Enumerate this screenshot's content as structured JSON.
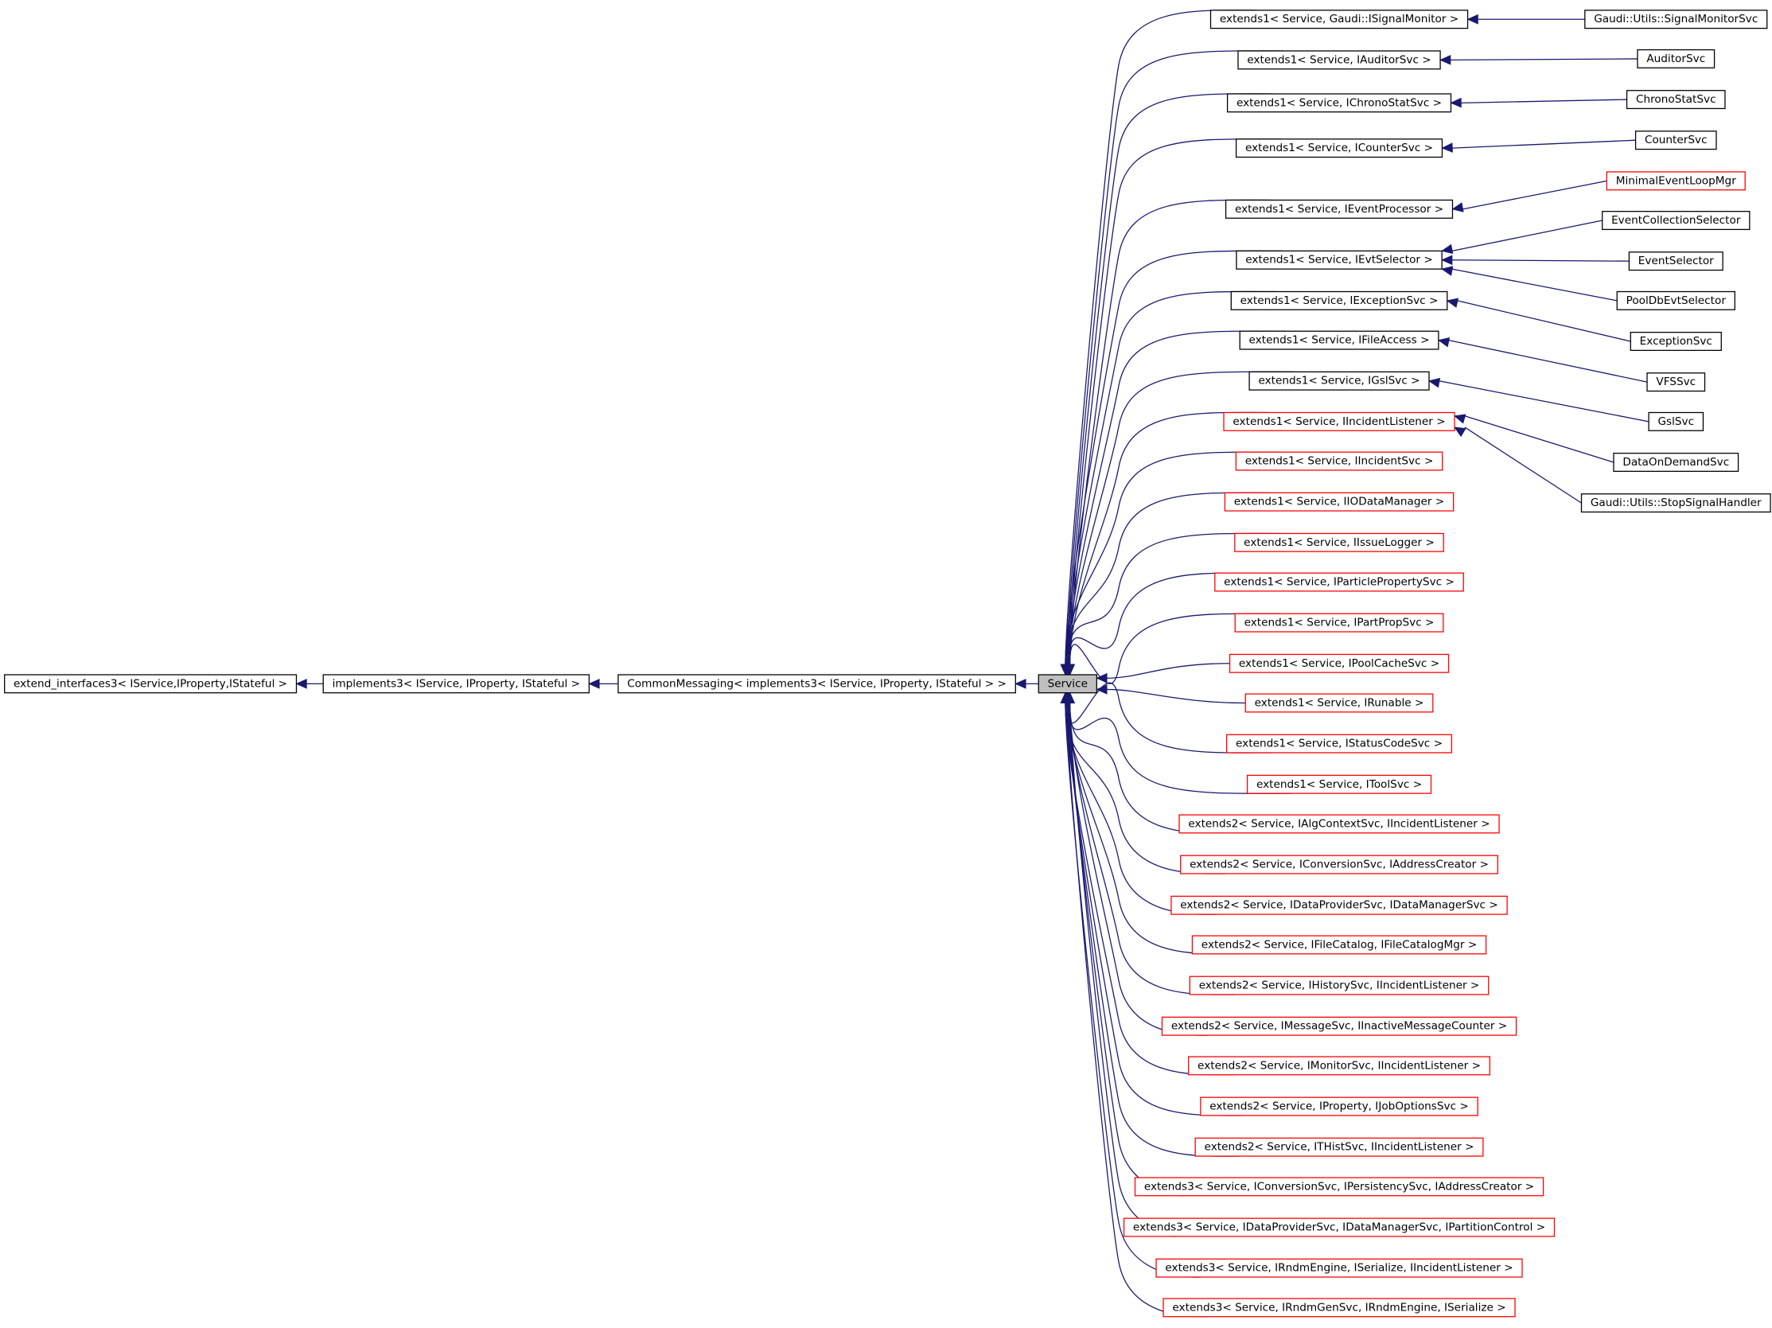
{
  "colors": {
    "edge": "#191970",
    "documented_border": "#000000",
    "undocumented_border": "#ff0000",
    "focus_fill": "#bfbfbf"
  },
  "chain": [
    {
      "label": "extend_interfaces3< IService,IProperty,IStateful >",
      "border": "black"
    },
    {
      "label": "implements3< IService, IProperty, IStateful >",
      "border": "black"
    },
    {
      "label": "CommonMessaging< implements3< IService, IProperty, IStateful > >",
      "border": "black"
    },
    {
      "label": "Service",
      "border": "black",
      "focus": true
    }
  ],
  "middle": [
    {
      "label": "extends1< Service, Gaudi::ISignalMonitor >",
      "border": "black"
    },
    {
      "label": "extends1< Service, IAuditorSvc >",
      "border": "black"
    },
    {
      "label": "extends1< Service, IChronoStatSvc >",
      "border": "black"
    },
    {
      "label": "extends1< Service, ICounterSvc >",
      "border": "black"
    },
    {
      "label": "extends1< Service, IEventProcessor >",
      "border": "black"
    },
    {
      "label": "extends1< Service, IEvtSelector >",
      "border": "black"
    },
    {
      "label": "extends1< Service, IExceptionSvc >",
      "border": "black"
    },
    {
      "label": "extends1< Service, IFileAccess >",
      "border": "black"
    },
    {
      "label": "extends1< Service, IGslSvc >",
      "border": "black"
    },
    {
      "label": "extends1< Service, IIncidentListener >",
      "border": "red"
    },
    {
      "label": "extends1< Service, IIncidentSvc >",
      "border": "red"
    },
    {
      "label": "extends1< Service, IIODataManager >",
      "border": "red"
    },
    {
      "label": "extends1< Service, IIssueLogger >",
      "border": "red"
    },
    {
      "label": "extends1< Service, IParticlePropertySvc >",
      "border": "red"
    },
    {
      "label": "extends1< Service, IPartPropSvc >",
      "border": "red"
    },
    {
      "label": "extends1< Service, IPoolCacheSvc >",
      "border": "red"
    },
    {
      "label": "extends1< Service, IRunable >",
      "border": "red"
    },
    {
      "label": "extends1< Service, IStatusCodeSvc >",
      "border": "red"
    },
    {
      "label": "extends1< Service, IToolSvc >",
      "border": "red"
    },
    {
      "label": "extends2< Service, IAlgContextSvc, IIncidentListener >",
      "border": "red"
    },
    {
      "label": "extends2< Service, IConversionSvc, IAddressCreator >",
      "border": "red"
    },
    {
      "label": "extends2< Service, IDataProviderSvc, IDataManagerSvc >",
      "border": "red"
    },
    {
      "label": "extends2< Service, IFileCatalog, IFileCatalogMgr >",
      "border": "red"
    },
    {
      "label": "extends2< Service, IHistorySvc, IIncidentListener >",
      "border": "red"
    },
    {
      "label": "extends2< Service, IMessageSvc, IInactiveMessageCounter >",
      "border": "red"
    },
    {
      "label": "extends2< Service, IMonitorSvc, IIncidentListener >",
      "border": "red"
    },
    {
      "label": "extends2< Service, IProperty, IJobOptionsSvc >",
      "border": "red"
    },
    {
      "label": "extends2< Service, ITHistSvc, IIncidentListener >",
      "border": "red"
    },
    {
      "label": "extends3< Service, IConversionSvc, IPersistencySvc, IAddressCreator >",
      "border": "red"
    },
    {
      "label": "extends3< Service, IDataProviderSvc, IDataManagerSvc, IPartitionControl >",
      "border": "red"
    },
    {
      "label": "extends3< Service, IRndmEngine, ISerialize, IIncidentListener >",
      "border": "red"
    },
    {
      "label": "extends3< Service, IRndmGenSvc, IRndmEngine, ISerialize >",
      "border": "red"
    }
  ],
  "leaves": [
    {
      "label": "Gaudi::Utils::SignalMonitorSvc",
      "border": "black",
      "parent": 0
    },
    {
      "label": "AuditorSvc",
      "border": "black",
      "parent": 1
    },
    {
      "label": "ChronoStatSvc",
      "border": "black",
      "parent": 2
    },
    {
      "label": "CounterSvc",
      "border": "black",
      "parent": 3
    },
    {
      "label": "MinimalEventLoopMgr",
      "border": "red",
      "parent": 4
    },
    {
      "label": "EventCollectionSelector",
      "border": "black",
      "parent": 5
    },
    {
      "label": "EventSelector",
      "border": "black",
      "parent": 5
    },
    {
      "label": "PoolDbEvtSelector",
      "border": "black",
      "parent": 5
    },
    {
      "label": "ExceptionSvc",
      "border": "black",
      "parent": 6
    },
    {
      "label": "VFSSvc",
      "border": "black",
      "parent": 7
    },
    {
      "label": "GslSvc",
      "border": "black",
      "parent": 8
    },
    {
      "label": "DataOnDemandSvc",
      "border": "black",
      "parent": 9
    },
    {
      "label": "Gaudi::Utils::StopSignalHandler",
      "border": "black",
      "parent": 9
    }
  ]
}
